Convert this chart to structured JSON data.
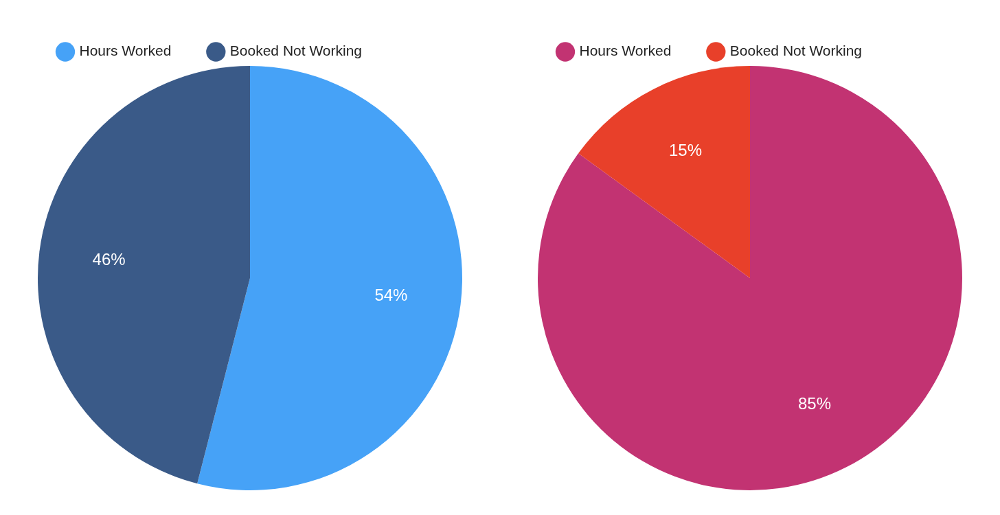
{
  "chart_data": [
    {
      "type": "pie",
      "categories": [
        "Hours Worked",
        "Booked Not Working"
      ],
      "values": [
        54,
        46
      ],
      "value_labels": [
        "54%",
        "46%"
      ],
      "colors": [
        "#46a2f7",
        "#3a5a88"
      ],
      "legend": "top left"
    },
    {
      "type": "pie",
      "categories": [
        "Hours Worked",
        "Booked Not Working"
      ],
      "values": [
        85,
        15
      ],
      "value_labels": [
        "85%",
        "15%"
      ],
      "colors": [
        "#c23372",
        "#e8402a"
      ],
      "legend": "top left"
    }
  ]
}
